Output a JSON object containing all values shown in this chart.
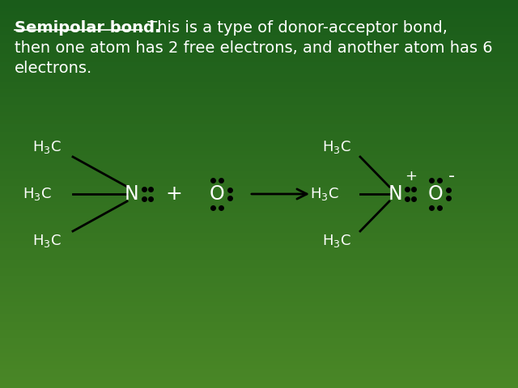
{
  "bg_color_top": "#1a5c1a",
  "bg_color_bottom": "#4a8c3a",
  "text_color": "white",
  "molecule_color": "black",
  "label_color": "white",
  "figsize": [
    6.4,
    4.8
  ],
  "dpi": 100,
  "title_bold": "Semipolar bond.",
  "title_rest_line1": " This is a type of donor-acceptor bond,",
  "title_line2": "then one atom has 2 free electrons, and another atom has 6",
  "title_line3": "electrons."
}
